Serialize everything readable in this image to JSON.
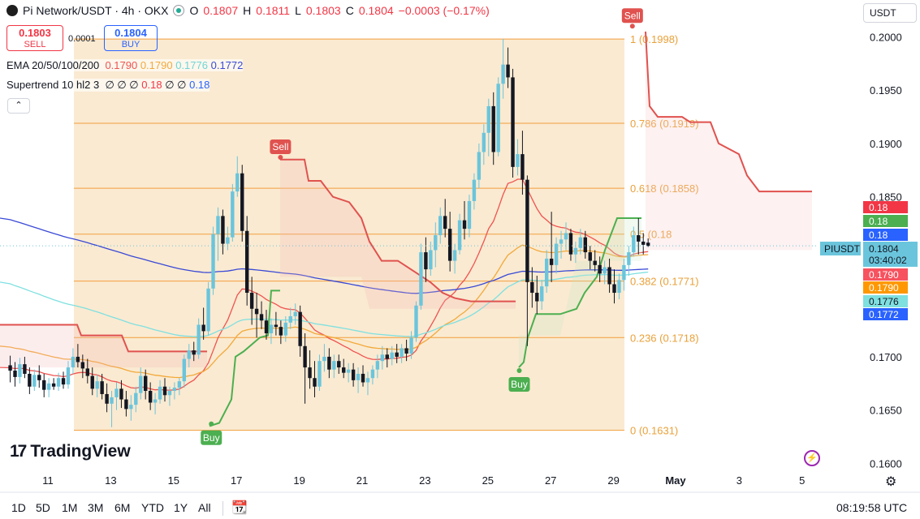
{
  "header": {
    "symbol": "Pi Network/USDT · 4h · OKX",
    "o_label": "O",
    "o": "0.1807",
    "h_label": "H",
    "h": "0.1811",
    "l_label": "L",
    "l": "0.1803",
    "c_label": "C",
    "c": "0.1804",
    "change": "−0.0003 (−0.17%)"
  },
  "trade": {
    "sell_price": "0.1803",
    "sell_label": "SELL",
    "spread": "0.0001",
    "buy_price": "0.1804",
    "buy_label": "BUY"
  },
  "indicators": {
    "ema": {
      "label": "EMA 20/50/100/200",
      "values": [
        "0.1790",
        "0.1790",
        "0.1776",
        "0.1772"
      ],
      "colors": [
        "#ef5350",
        "#f2a93b",
        "#7fe0e0",
        "#3949d6"
      ]
    },
    "supertrend": {
      "label": "Supertrend 10 hl2 3",
      "glyphs": "∅ ∅ ∅",
      "value1": "0.18",
      "glyphs2": "∅ ∅",
      "value2": "0.18"
    }
  },
  "currency": "USDT",
  "brand": "TradingView",
  "timeframes": [
    "1D",
    "5D",
    "1M",
    "3M",
    "6M",
    "YTD",
    "1Y",
    "All"
  ],
  "clock": "08:19:58 UTC",
  "chart_data": {
    "type": "candlestick",
    "ylim": [
      0.1595,
      0.203
    ],
    "y_ticks": [
      "0.1600",
      "0.1650",
      "0.1700",
      "0.1750",
      "0.1800",
      "0.1850",
      "0.1900",
      "0.1950",
      "0.2000"
    ],
    "x_ticks": [
      "11",
      "13",
      "15",
      "17",
      "19",
      "21",
      "23",
      "25",
      "27",
      "29",
      "May",
      "3",
      "5"
    ],
    "fib_levels": [
      {
        "label": "1 (0.1998)",
        "value": 0.1998
      },
      {
        "label": "0.786 (0.1919)",
        "value": 0.1919
      },
      {
        "label": "0.618 (0.1858)",
        "value": 0.1858
      },
      {
        "label": "0.5 (0.18",
        "value": 0.1815
      },
      {
        "label": "0.382 (0.1771)",
        "value": 0.1771
      },
      {
        "label": "0.236 (0.1718)",
        "value": 0.1718
      },
      {
        "label": "0 (0.1631)",
        "value": 0.1631
      }
    ],
    "signals": [
      {
        "label": "Sell",
        "type": "sell",
        "day": 18.4,
        "price": 0.1887
      },
      {
        "label": "Buy",
        "type": "buy",
        "day": 16.2,
        "price": 0.1637
      },
      {
        "label": "Buy",
        "type": "buy",
        "day": 26.0,
        "price": 0.1687
      },
      {
        "label": "Sell",
        "type": "sell",
        "day": 29.6,
        "price": 0.201
      }
    ],
    "price_tags": [
      {
        "text": "0.18",
        "color": "#f23645"
      },
      {
        "text": "0.18",
        "color": "#4caf50"
      },
      {
        "text": "0.18",
        "color": "#2962ff"
      },
      {
        "text": "0.1790",
        "color": "#f7525f"
      },
      {
        "text": "0.1790",
        "color": "#ff9800"
      },
      {
        "text": "0.1776",
        "color": "#7fe0e0"
      },
      {
        "text": "0.1772",
        "color": "#2962ff"
      }
    ],
    "last_price": {
      "symbol": "PIUSDT",
      "price": "0.1804",
      "countdown": "03:40:02"
    },
    "candles": [
      [
        0.1692,
        0.1701,
        0.1676,
        0.1687
      ],
      [
        0.1687,
        0.1695,
        0.1672,
        0.1681
      ],
      [
        0.1681,
        0.1699,
        0.1675,
        0.1693
      ],
      [
        0.1693,
        0.17,
        0.168,
        0.1684
      ],
      [
        0.1684,
        0.169,
        0.1665,
        0.1672
      ],
      [
        0.1672,
        0.1688,
        0.1668,
        0.1683
      ],
      [
        0.1683,
        0.1692,
        0.1671,
        0.1678
      ],
      [
        0.1678,
        0.1684,
        0.1662,
        0.1669
      ],
      [
        0.1669,
        0.168,
        0.1662,
        0.1675
      ],
      [
        0.1675,
        0.168,
        0.1669,
        0.1672
      ],
      [
        0.1672,
        0.1685,
        0.1668,
        0.168
      ],
      [
        0.168,
        0.1686,
        0.167,
        0.1674
      ],
      [
        0.1674,
        0.1696,
        0.167,
        0.169
      ],
      [
        0.169,
        0.1708,
        0.1684,
        0.17
      ],
      [
        0.17,
        0.1712,
        0.169,
        0.1695
      ],
      [
        0.1695,
        0.1702,
        0.168,
        0.1689
      ],
      [
        0.1689,
        0.1698,
        0.1675,
        0.1682
      ],
      [
        0.1682,
        0.169,
        0.1664,
        0.167
      ],
      [
        0.167,
        0.1683,
        0.1662,
        0.1677
      ],
      [
        0.1677,
        0.1684,
        0.166,
        0.1665
      ],
      [
        0.1665,
        0.1675,
        0.1648,
        0.1656
      ],
      [
        0.1656,
        0.1668,
        0.1634,
        0.1662
      ],
      [
        0.1662,
        0.1676,
        0.165,
        0.167
      ],
      [
        0.167,
        0.1678,
        0.1652,
        0.166
      ],
      [
        0.166,
        0.1668,
        0.1644,
        0.1651
      ],
      [
        0.1651,
        0.1664,
        0.164,
        0.1655
      ],
      [
        0.1655,
        0.1672,
        0.1648,
        0.1666
      ],
      [
        0.1666,
        0.169,
        0.166,
        0.1682
      ],
      [
        0.1682,
        0.1688,
        0.166,
        0.1668
      ],
      [
        0.1668,
        0.1676,
        0.165,
        0.1657
      ],
      [
        0.1657,
        0.1666,
        0.1646,
        0.166
      ],
      [
        0.166,
        0.1678,
        0.1656,
        0.1672
      ],
      [
        0.1672,
        0.168,
        0.1658,
        0.1664
      ],
      [
        0.1664,
        0.1672,
        0.1654,
        0.1668
      ],
      [
        0.1668,
        0.1676,
        0.166,
        0.1671
      ],
      [
        0.1671,
        0.168,
        0.1664,
        0.1677
      ],
      [
        0.1677,
        0.1702,
        0.1671,
        0.1698
      ],
      [
        0.1698,
        0.1712,
        0.169,
        0.1706
      ],
      [
        0.1706,
        0.1714,
        0.1696,
        0.1702
      ],
      [
        0.1702,
        0.1736,
        0.1698,
        0.173
      ],
      [
        0.173,
        0.1746,
        0.1716,
        0.1724
      ],
      [
        0.1724,
        0.177,
        0.172,
        0.1764
      ],
      [
        0.1764,
        0.1822,
        0.1758,
        0.1815
      ],
      [
        0.1815,
        0.184,
        0.179,
        0.1832
      ],
      [
        0.1832,
        0.1838,
        0.1796,
        0.1806
      ],
      [
        0.1806,
        0.1822,
        0.18,
        0.1812
      ],
      [
        0.1812,
        0.1862,
        0.1808,
        0.1855
      ],
      [
        0.1855,
        0.1888,
        0.185,
        0.1872
      ],
      [
        0.1872,
        0.188,
        0.1808,
        0.1818
      ],
      [
        0.1818,
        0.1832,
        0.1748,
        0.176
      ],
      [
        0.176,
        0.1775,
        0.173,
        0.1745
      ],
      [
        0.1745,
        0.176,
        0.1718,
        0.174
      ],
      [
        0.174,
        0.1752,
        0.1726,
        0.1734
      ],
      [
        0.1734,
        0.1744,
        0.1716,
        0.1722
      ],
      [
        0.1722,
        0.1736,
        0.1712,
        0.173
      ],
      [
        0.173,
        0.1742,
        0.172,
        0.1728
      ],
      [
        0.1728,
        0.1734,
        0.1712,
        0.172
      ],
      [
        0.172,
        0.1738,
        0.1714,
        0.1732
      ],
      [
        0.1732,
        0.1746,
        0.1726,
        0.1738
      ],
      [
        0.1738,
        0.175,
        0.173,
        0.1742
      ],
      [
        0.1742,
        0.1748,
        0.17,
        0.171
      ],
      [
        0.171,
        0.1722,
        0.1656,
        0.169
      ],
      [
        0.169,
        0.1706,
        0.167,
        0.168
      ],
      [
        0.168,
        0.1696,
        0.1662,
        0.1672
      ],
      [
        0.1672,
        0.1702,
        0.1668,
        0.1696
      ],
      [
        0.1696,
        0.1712,
        0.1686,
        0.17
      ],
      [
        0.17,
        0.1708,
        0.168,
        0.1688
      ],
      [
        0.1688,
        0.1702,
        0.168,
        0.1696
      ],
      [
        0.1696,
        0.1702,
        0.1684,
        0.169
      ],
      [
        0.169,
        0.1698,
        0.168,
        0.1685
      ],
      [
        0.1685,
        0.1694,
        0.1676,
        0.1688
      ],
      [
        0.1688,
        0.1694,
        0.1672,
        0.1678
      ],
      [
        0.1678,
        0.169,
        0.1666,
        0.1684
      ],
      [
        0.1684,
        0.1692,
        0.1672,
        0.1676
      ],
      [
        0.1676,
        0.1686,
        0.1664,
        0.168
      ],
      [
        0.168,
        0.1692,
        0.1674,
        0.1688
      ],
      [
        0.1688,
        0.1702,
        0.168,
        0.1696
      ],
      [
        0.1696,
        0.171,
        0.1688,
        0.1702
      ],
      [
        0.1702,
        0.1708,
        0.169,
        0.1698
      ],
      [
        0.1698,
        0.171,
        0.1692,
        0.1704
      ],
      [
        0.1704,
        0.1712,
        0.1694,
        0.17
      ],
      [
        0.17,
        0.1712,
        0.1694,
        0.1708
      ],
      [
        0.1708,
        0.1716,
        0.1696,
        0.1703
      ],
      [
        0.1703,
        0.1724,
        0.1698,
        0.1718
      ],
      [
        0.1718,
        0.1752,
        0.1714,
        0.1748
      ],
      [
        0.1748,
        0.1806,
        0.1744,
        0.1798
      ],
      [
        0.1798,
        0.1812,
        0.177,
        0.1782
      ],
      [
        0.1782,
        0.1808,
        0.1776,
        0.18
      ],
      [
        0.18,
        0.1826,
        0.1784,
        0.1814
      ],
      [
        0.1814,
        0.184,
        0.1806,
        0.1832
      ],
      [
        0.1832,
        0.1848,
        0.1812,
        0.182
      ],
      [
        0.182,
        0.1836,
        0.178,
        0.179
      ],
      [
        0.179,
        0.1806,
        0.1778,
        0.18
      ],
      [
        0.18,
        0.1834,
        0.1796,
        0.1828
      ],
      [
        0.1828,
        0.1846,
        0.181,
        0.182
      ],
      [
        0.182,
        0.1852,
        0.1812,
        0.1846
      ],
      [
        0.1846,
        0.1872,
        0.1838,
        0.1866
      ],
      [
        0.1866,
        0.19,
        0.1858,
        0.1892
      ],
      [
        0.1892,
        0.1918,
        0.188,
        0.191
      ],
      [
        0.191,
        0.1942,
        0.1888,
        0.1935
      ],
      [
        0.1935,
        0.1948,
        0.188,
        0.1892
      ],
      [
        0.1892,
        0.1962,
        0.1888,
        0.1956
      ],
      [
        0.1956,
        0.1998,
        0.1942,
        0.1974
      ],
      [
        0.1974,
        0.199,
        0.1952,
        0.1962
      ],
      [
        0.1962,
        0.197,
        0.1868,
        0.1878
      ],
      [
        0.1878,
        0.1904,
        0.187,
        0.189
      ],
      [
        0.189,
        0.1912,
        0.1852,
        0.1866
      ],
      [
        0.1866,
        0.187,
        0.171,
        0.177
      ],
      [
        0.177,
        0.1784,
        0.1746,
        0.176
      ],
      [
        0.176,
        0.1776,
        0.174,
        0.1752
      ],
      [
        0.1752,
        0.1772,
        0.1744,
        0.1766
      ],
      [
        0.1766,
        0.18,
        0.176,
        0.1792
      ],
      [
        0.1792,
        0.1836,
        0.177,
        0.1786
      ],
      [
        0.1786,
        0.1812,
        0.1778,
        0.1806
      ],
      [
        0.1806,
        0.1818,
        0.1792,
        0.181
      ],
      [
        0.181,
        0.1826,
        0.18,
        0.1816
      ],
      [
        0.1816,
        0.182,
        0.179,
        0.1796
      ],
      [
        0.1796,
        0.1808,
        0.1788,
        0.1802
      ],
      [
        0.1802,
        0.182,
        0.1796,
        0.1812
      ],
      [
        0.1812,
        0.1818,
        0.1792,
        0.1798
      ],
      [
        0.1798,
        0.1804,
        0.1782,
        0.179
      ],
      [
        0.179,
        0.18,
        0.178,
        0.1786
      ],
      [
        0.1786,
        0.1794,
        0.177,
        0.1778
      ],
      [
        0.1778,
        0.179,
        0.1768,
        0.1784
      ],
      [
        0.1784,
        0.1792,
        0.176,
        0.1768
      ],
      [
        0.1768,
        0.1782,
        0.175,
        0.176
      ],
      [
        0.176,
        0.1778,
        0.1754,
        0.1772
      ],
      [
        0.1772,
        0.1792,
        0.1762,
        0.1786
      ],
      [
        0.1786,
        0.1804,
        0.1776,
        0.1798
      ],
      [
        0.1798,
        0.1822,
        0.1794,
        0.1814
      ],
      [
        0.1814,
        0.183,
        0.1796,
        0.1808
      ],
      [
        0.1808,
        0.1816,
        0.1796,
        0.1805
      ],
      [
        0.1807,
        0.1811,
        0.1803,
        0.1804
      ]
    ]
  }
}
